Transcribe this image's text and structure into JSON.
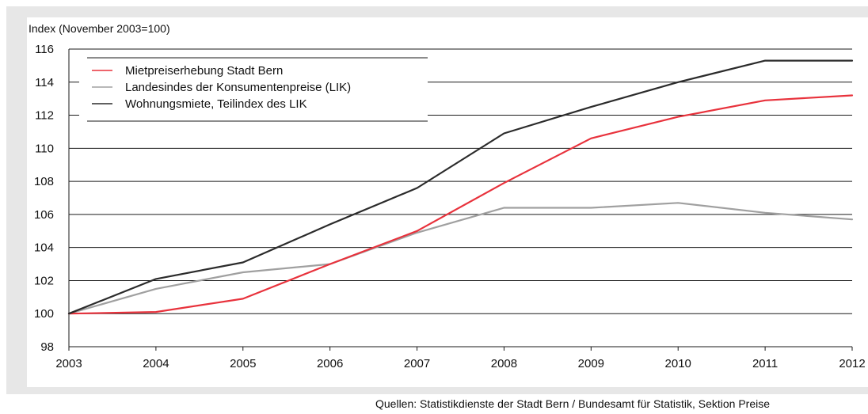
{
  "chart_data": {
    "type": "line",
    "title": "",
    "ylabel": "Index (November 2003=100)",
    "xlabel": "",
    "x": [
      2003,
      2004,
      2005,
      2006,
      2007,
      2008,
      2009,
      2010,
      2011,
      2012
    ],
    "x_tick_labels": [
      "2003",
      "2004",
      "2005",
      "2006",
      "2007",
      "2008",
      "2009",
      "2010",
      "2011",
      "2012"
    ],
    "ylim": [
      98,
      116
    ],
    "y_ticks": [
      98,
      100,
      102,
      104,
      106,
      108,
      110,
      112,
      114,
      116
    ],
    "y_tick_labels": [
      "98",
      "100",
      "102",
      "104",
      "106",
      "108",
      "110",
      "112",
      "114",
      "116"
    ],
    "grid": "horizontal",
    "legend_position": "top-left",
    "series": [
      {
        "name": "Mietpreiserhebung Stadt Bern",
        "color": "#e8323c",
        "values": [
          100,
          100.1,
          100.9,
          103.0,
          105.0,
          107.9,
          110.6,
          111.9,
          112.9,
          113.2
        ]
      },
      {
        "name": "Landesindes der Konsumentenpreise (LIK)",
        "color": "#a0a0a0",
        "values": [
          100,
          101.5,
          102.5,
          103.0,
          104.9,
          106.4,
          106.4,
          106.7,
          106.1,
          105.7
        ]
      },
      {
        "name": "Wohnungsmiete, Teilindex des LIK",
        "color": "#2b2b2b",
        "values": [
          100,
          102.1,
          103.1,
          105.4,
          107.6,
          110.9,
          112.5,
          114.0,
          115.3,
          115.3
        ]
      }
    ]
  },
  "source_note": "Quellen: Statistikdienste der Stadt Bern / Bundesamt für Statistik, Sektion Preise"
}
